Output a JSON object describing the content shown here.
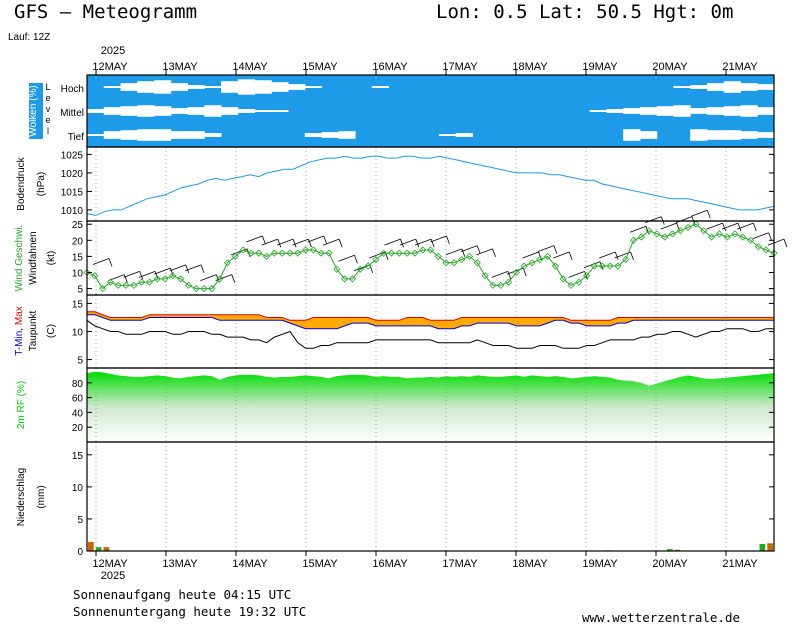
{
  "header": {
    "title": "GFS – Meteogramm",
    "location": "Lon: 0.5 Lat: 50.5 Hgt: 0m",
    "run": "Lauf: 12Z"
  },
  "time_axis": {
    "year": "2025",
    "days": [
      "12MAY",
      "13MAY",
      "14MAY",
      "15MAY",
      "16MAY",
      "17MAY",
      "18MAY",
      "19MAY",
      "20MAY",
      "21MAY"
    ]
  },
  "footer": {
    "sunrise": "Sonnenaufgang heute 04:15 UTC",
    "sunset": "Sonnenuntergang heute 19:32 UTC",
    "site": "www.wetterzentrale.de"
  },
  "colors": {
    "cloud": "#1e9be8",
    "pressure": "#1e9be8",
    "wind": "#22aa22",
    "tmin": "#0000dd",
    "tmax": "#dd0000",
    "tfill": "#ffaa00",
    "dew": "#000000",
    "rh": "#00cc00",
    "rain": "#cc6600",
    "rain_conv": "#22aa22"
  },
  "chart_data": [
    {
      "type": "heatmap",
      "panel": "clouds",
      "ylabel": "Wolken (%)",
      "ylabel_side": "Level",
      "levels": [
        "Hoch",
        "Mittel",
        "Tief"
      ],
      "x_step_hours": 6,
      "x_start": "2025-05-11T18:00",
      "cover_percent": {
        "Hoch": [
          100,
          90,
          60,
          40,
          30,
          60,
          80,
          90,
          40,
          20,
          30,
          50,
          70,
          90,
          100,
          100,
          100,
          90,
          100,
          100,
          100,
          100,
          100,
          100,
          100,
          100,
          100,
          100,
          100,
          100,
          100,
          100,
          100,
          100,
          100,
          90,
          80,
          60,
          40,
          60,
          70
        ],
        "Mittel": [
          80,
          60,
          50,
          40,
          50,
          70,
          60,
          40,
          60,
          80,
          90,
          90,
          100,
          100,
          100,
          100,
          100,
          100,
          100,
          100,
          100,
          100,
          100,
          100,
          100,
          100,
          100,
          100,
          100,
          100,
          90,
          80,
          70,
          60,
          50,
          40,
          70,
          60,
          50,
          40,
          60
        ],
        "Tief": [
          90,
          60,
          50,
          40,
          40,
          60,
          60,
          80,
          100,
          100,
          100,
          100,
          100,
          80,
          70,
          60,
          100,
          100,
          100,
          100,
          100,
          90,
          80,
          100,
          100,
          100,
          100,
          100,
          100,
          100,
          100,
          100,
          40,
          60,
          100,
          100,
          40,
          50,
          50,
          60,
          70
        ]
      }
    },
    {
      "type": "line",
      "panel": "pressure",
      "ylabel": "Bodendruck",
      "unit": "(hPa)",
      "ylim": [
        1007,
        1027
      ],
      "yticks": [
        1010,
        1015,
        1020,
        1025
      ],
      "x_step_hours": 6,
      "x_start": "2025-05-11T18:00",
      "values": [
        1009,
        1008.5,
        1009.5,
        1010,
        1010,
        1011,
        1012,
        1013,
        1013.5,
        1014,
        1015,
        1016,
        1016.5,
        1017,
        1018,
        1018.5,
        1018,
        1018.5,
        1019,
        1019.5,
        1019,
        1020,
        1020.5,
        1021,
        1021,
        1022,
        1023,
        1023.5,
        1024,
        1024,
        1024.5,
        1024,
        1024,
        1024.5,
        1024.5,
        1024,
        1024,
        1024.5,
        1024.5,
        1024,
        1024,
        1024.5,
        1024,
        1023.5,
        1023,
        1022.5,
        1022,
        1021.5,
        1021,
        1020.5,
        1020,
        1020,
        1020,
        1020,
        1019.5,
        1019.5,
        1019,
        1018.5,
        1018,
        1018,
        1017,
        1016.5,
        1016,
        1015.5,
        1015,
        1014.5,
        1014,
        1013.5,
        1013,
        1013,
        1013,
        1012.5,
        1012,
        1011.5,
        1011,
        1010.5,
        1010,
        1010,
        1010,
        1010.5,
        1011
      ]
    },
    {
      "type": "line",
      "panel": "wind",
      "ylabel": "Wind Geschwi.",
      "ylabel2": "Windfahnen",
      "unit": "(kt)",
      "ylim": [
        3,
        26
      ],
      "yticks": [
        5,
        10,
        15,
        20,
        25
      ],
      "x_step_hours": 6,
      "x_start": "2025-05-11T18:00",
      "values": [
        10,
        9,
        5,
        7,
        6,
        6,
        6,
        7,
        7,
        8,
        8,
        9,
        8,
        6,
        5,
        5,
        5,
        8,
        13,
        15,
        17,
        16,
        16,
        15,
        16,
        16,
        16,
        16,
        17,
        17,
        16,
        16,
        11,
        8,
        8,
        11,
        12,
        14,
        16,
        16,
        16,
        16,
        16,
        17,
        17,
        15,
        13,
        13,
        14,
        15,
        13,
        9,
        6,
        6,
        7,
        10,
        12,
        13,
        14,
        15,
        12,
        8,
        6,
        7,
        9,
        12,
        12,
        12,
        12,
        14,
        20,
        21,
        23,
        22,
        21,
        22,
        23,
        24,
        25,
        23,
        21,
        22,
        21,
        22,
        21,
        20,
        18,
        17,
        16
      ]
    },
    {
      "type": "line",
      "panel": "temperature",
      "ylabel": "T-Min, Max",
      "ylabel2": "Taupunkt",
      "unit": "(C)",
      "ylim": [
        3.5,
        16.5
      ],
      "yticks": [
        5,
        10,
        15
      ],
      "x_step_hours": 6,
      "x_start": "2025-05-11T18:00",
      "series": [
        {
          "name": "T-Min",
          "values": [
            13,
            13,
            12.5,
            12,
            12,
            12,
            12,
            12,
            12.5,
            12.5,
            12.5,
            12.5,
            12.5,
            12.5,
            12.5,
            12.5,
            12.5,
            12,
            12,
            12,
            12,
            12,
            12,
            12,
            12,
            12,
            11.5,
            11,
            10.5,
            10.5,
            10.5,
            10.5,
            10.5,
            11,
            11.5,
            11.5,
            11.5,
            11,
            11,
            11,
            11,
            11,
            11,
            11,
            11,
            10.5,
            10.5,
            10.5,
            11,
            11,
            11.5,
            11.5,
            11.5,
            11.5,
            11.5,
            11,
            11,
            11,
            11,
            11.5,
            12,
            12,
            11.5,
            11.5,
            11,
            11,
            11,
            11,
            11.5,
            11.5,
            12,
            12,
            12,
            12,
            12,
            12,
            12,
            12,
            12,
            12,
            12,
            12,
            12,
            12,
            12,
            12,
            12,
            12,
            12
          ]
        },
        {
          "name": "T-Max",
          "values": [
            13.5,
            13.5,
            13,
            12.5,
            12.5,
            12.5,
            12.5,
            12.5,
            13,
            13,
            13,
            13,
            13,
            13,
            13,
            13,
            13,
            13,
            13,
            13,
            13,
            13,
            13,
            12.5,
            12.5,
            12.5,
            12,
            12,
            12,
            12.5,
            12.5,
            12.5,
            12.5,
            12.5,
            12.5,
            12.5,
            12.5,
            12,
            12,
            12,
            12,
            12.5,
            12.5,
            12.5,
            12,
            12,
            12,
            12,
            12.5,
            12.5,
            12.5,
            12.5,
            12.5,
            12.5,
            12.5,
            12.5,
            12.5,
            12.5,
            12.5,
            12.5,
            12.5,
            12.5,
            12,
            12,
            12,
            12,
            12,
            12,
            12.5,
            12.5,
            12.5,
            12.5,
            12.5,
            12.5,
            12.5,
            12.5,
            12.5,
            12.5,
            12.5,
            12.5,
            12.5,
            12.5,
            12.5,
            12.5,
            12.5,
            12.5,
            12.5,
            12.5,
            12.5
          ]
        },
        {
          "name": "Taupunkt",
          "values": [
            12,
            11,
            10.5,
            10,
            10,
            9.5,
            9.5,
            9.5,
            10,
            10,
            10,
            9.5,
            9.5,
            10,
            10,
            10,
            9.5,
            9.5,
            9,
            9,
            9,
            8.5,
            8.5,
            8,
            9,
            9.5,
            10,
            8,
            7,
            7,
            7.5,
            7.5,
            8,
            8,
            8,
            8,
            8,
            8.5,
            8.5,
            8.5,
            8.5,
            8.5,
            8.5,
            8.5,
            8.5,
            8,
            8,
            8,
            8,
            8,
            8.5,
            8,
            7.5,
            7.5,
            7.5,
            7,
            7,
            7,
            7.5,
            7.5,
            7.5,
            7,
            7,
            7,
            7.5,
            7.5,
            8,
            8.5,
            8.5,
            8.5,
            8.5,
            9,
            9,
            9.5,
            9.5,
            10,
            10,
            9.5,
            9,
            9.5,
            10,
            10,
            10.5,
            10.5,
            10.5,
            10,
            10,
            10.5,
            10.5
          ]
        }
      ]
    },
    {
      "type": "area",
      "panel": "humidity",
      "ylabel": "2m RF (%)",
      "ylim": [
        0,
        100
      ],
      "yticks": [
        20,
        40,
        60,
        80
      ],
      "x_step_hours": 6,
      "x_start": "2025-05-11T18:00",
      "values": [
        93,
        95,
        94,
        92,
        90,
        89,
        88,
        88,
        89,
        90,
        89,
        87,
        86,
        88,
        89,
        90,
        89,
        84,
        88,
        90,
        91,
        91,
        90,
        88,
        87,
        88,
        88,
        89,
        90,
        89,
        88,
        86,
        89,
        90,
        91,
        91,
        90,
        88,
        89,
        88,
        88,
        86,
        87,
        87,
        88,
        87,
        89,
        88,
        89,
        88,
        90,
        89,
        88,
        88,
        89,
        90,
        88,
        90,
        89,
        88,
        89,
        88,
        86,
        87,
        88,
        89,
        88,
        87,
        84,
        83,
        82,
        80,
        76,
        79,
        82,
        85,
        88,
        90,
        88,
        86,
        85,
        86,
        87,
        88,
        89,
        90,
        91,
        92,
        93
      ]
    },
    {
      "type": "bar",
      "panel": "precipitation",
      "ylabel": "Niederschlag",
      "unit": "(mm)",
      "ylim": [
        0,
        17
      ],
      "yticks": [
        5,
        10,
        15
      ],
      "x_step_hours": 6,
      "x_start": "2025-05-11T18:00",
      "values": [
        1.4,
        0.6,
        0.6,
        0,
        0,
        0,
        0,
        0,
        0,
        0,
        0,
        0,
        0,
        0,
        0,
        0,
        0,
        0,
        0,
        0,
        0,
        0,
        0,
        0,
        0,
        0,
        0,
        0,
        0,
        0,
        0,
        0,
        0,
        0,
        0,
        0,
        0,
        0,
        0,
        0,
        0,
        0,
        0,
        0,
        0,
        0,
        0,
        0,
        0,
        0,
        0,
        0,
        0,
        0,
        0,
        0,
        0,
        0,
        0,
        0,
        0,
        0,
        0,
        0,
        0,
        0,
        0,
        0.1,
        0,
        0,
        0,
        0,
        0,
        0,
        0,
        0.3,
        0.2,
        0,
        0,
        0,
        0,
        0,
        0,
        0,
        0,
        0,
        0,
        1.1,
        1.2
      ]
    }
  ]
}
